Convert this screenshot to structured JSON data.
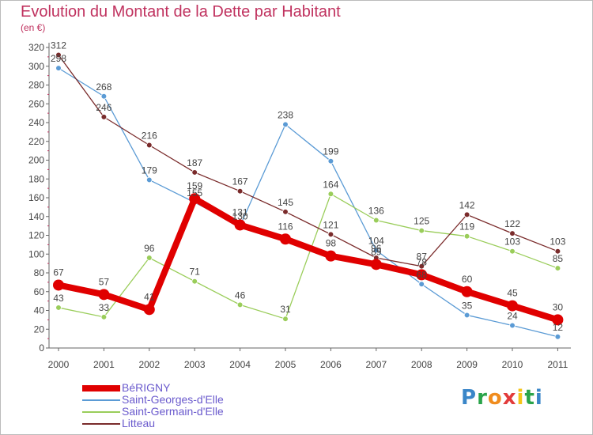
{
  "header": {
    "title": "Evolution du Montant de la Dette par Habitant",
    "unit": "(en €)"
  },
  "brand": {
    "letters": [
      "P",
      "r",
      "o",
      "x",
      "i",
      "t",
      "i"
    ],
    "colors": [
      "#3a86c8",
      "#2aa44a",
      "#f08c1e",
      "#e23b3b",
      "#f5c518",
      "#2aa44a",
      "#3a86c8"
    ]
  },
  "chart_data": {
    "type": "line",
    "title": "Evolution du Montant de la Dette par Habitant",
    "ylabel": "(en €)",
    "xlabel": "",
    "x": [
      "2000",
      "2001",
      "2002",
      "2003",
      "2004",
      "2005",
      "2006",
      "2007",
      "2008",
      "2009",
      "2010",
      "2011"
    ],
    "yticks": [
      "0",
      "20",
      "40",
      "60",
      "80",
      "100",
      "120",
      "140",
      "160",
      "180",
      "200",
      "220",
      "240",
      "260",
      "280",
      "300",
      "320"
    ],
    "ylim": [
      0,
      320
    ],
    "grid": false,
    "legend_position": "bottom-left",
    "series": [
      {
        "name": "BéRIGNY",
        "color": "#e00000",
        "values": [
          67,
          57,
          41,
          159,
          131,
          116,
          98,
          89,
          78,
          60,
          45,
          30
        ],
        "labels": [
          "67",
          "57",
          "41",
          "159",
          "131",
          "116",
          "98",
          "89",
          "78",
          "60",
          "45",
          "30"
        ]
      },
      {
        "name": "Saint-Georges-d'Elle",
        "color": "#5b9bd5",
        "values": [
          298,
          268,
          179,
          155,
          130,
          238,
          199,
          104,
          68,
          35,
          24,
          12
        ],
        "labels": [
          "298",
          "268",
          "179",
          "155",
          "130",
          "238",
          "199",
          "104",
          "68",
          "35",
          "24",
          "12"
        ]
      },
      {
        "name": "Saint-Germain-d'Elle",
        "color": "#9acd5a",
        "values": [
          43,
          33,
          96,
          71,
          46,
          31,
          164,
          136,
          125,
          119,
          103,
          85
        ],
        "labels": [
          "43",
          "33",
          "96",
          "71",
          "46",
          "31",
          "164",
          "136",
          "125",
          "119",
          "103",
          "85"
        ]
      },
      {
        "name": "Litteau",
        "color": "#7a2b2b",
        "values": [
          312,
          246,
          216,
          187,
          167,
          145,
          121,
          96,
          87,
          142,
          122,
          103
        ],
        "labels": [
          "312",
          "246",
          "216",
          "187",
          "167",
          "145",
          "121",
          "96",
          "87",
          "142",
          "122",
          "103"
        ]
      }
    ]
  }
}
